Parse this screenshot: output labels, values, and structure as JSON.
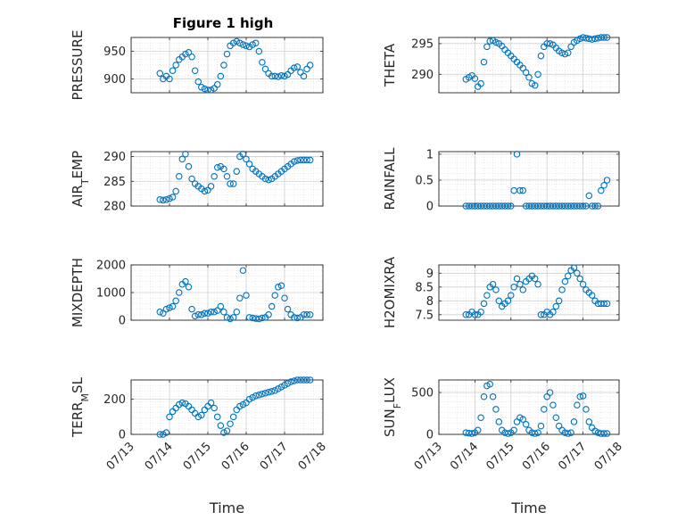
{
  "figure": {
    "title": "Figure 1 high"
  },
  "chart_data": [
    {
      "type": "scatter",
      "ylabel": "PRESSURE",
      "xlabel": "",
      "title": "Figure 1 high",
      "xlim": [
        "07/13",
        "07/18"
      ],
      "ylim": [
        875,
        975
      ],
      "yticks": [
        900,
        950
      ],
      "xticks": [
        "07/13",
        "07/14",
        "07/15",
        "07/16",
        "07/17",
        "07/18"
      ],
      "show_xticklabels": false,
      "grid": true,
      "marker_color": "#0072BD",
      "x": [
        "07/13 18:00",
        "07/13 20:00",
        "07/13 22:00",
        "07/14 00:00",
        "07/14 02:00",
        "07/14 04:00",
        "07/14 06:00",
        "07/14 08:00",
        "07/14 10:00",
        "07/14 12:00",
        "07/14 14:00",
        "07/14 16:00",
        "07/14 18:00",
        "07/14 20:00",
        "07/14 22:00",
        "07/15 00:00",
        "07/15 02:00",
        "07/15 04:00",
        "07/15 06:00",
        "07/15 08:00",
        "07/15 10:00",
        "07/15 12:00",
        "07/15 14:00",
        "07/15 16:00",
        "07/15 18:00",
        "07/15 20:00",
        "07/15 22:00",
        "07/16 00:00",
        "07/16 02:00",
        "07/16 04:00",
        "07/16 06:00",
        "07/16 08:00",
        "07/16 10:00",
        "07/16 12:00",
        "07/16 14:00",
        "07/16 16:00",
        "07/16 18:00",
        "07/16 20:00",
        "07/16 22:00",
        "07/17 00:00",
        "07/17 02:00",
        "07/17 04:00",
        "07/17 06:00",
        "07/17 08:00",
        "07/17 10:00",
        "07/17 12:00",
        "07/17 14:00",
        "07/17 16:00"
      ],
      "y": [
        910,
        900,
        905,
        900,
        915,
        925,
        935,
        940,
        945,
        948,
        940,
        915,
        895,
        885,
        882,
        880,
        880,
        883,
        890,
        905,
        925,
        945,
        960,
        965,
        968,
        965,
        962,
        960,
        958,
        962,
        965,
        950,
        930,
        918,
        910,
        905,
        905,
        904,
        906,
        905,
        908,
        915,
        920,
        922,
        912,
        905,
        918,
        925
      ]
    },
    {
      "type": "scatter",
      "ylabel": "THETA",
      "xlabel": "",
      "title": "",
      "xlim": [
        "07/13",
        "07/18"
      ],
      "ylim": [
        287,
        296
      ],
      "yticks": [
        290,
        295
      ],
      "xticks": [
        "07/13",
        "07/14",
        "07/15",
        "07/16",
        "07/17",
        "07/18"
      ],
      "show_xticklabels": false,
      "grid": true,
      "marker_color": "#0072BD",
      "x": [
        "07/13 18:00",
        "07/13 20:00",
        "07/13 22:00",
        "07/14 00:00",
        "07/14 02:00",
        "07/14 04:00",
        "07/14 06:00",
        "07/14 08:00",
        "07/14 10:00",
        "07/14 12:00",
        "07/14 14:00",
        "07/14 16:00",
        "07/14 18:00",
        "07/14 20:00",
        "07/14 22:00",
        "07/15 00:00",
        "07/15 02:00",
        "07/15 04:00",
        "07/15 06:00",
        "07/15 08:00",
        "07/15 10:00",
        "07/15 12:00",
        "07/15 14:00",
        "07/15 16:00",
        "07/15 18:00",
        "07/15 20:00",
        "07/15 22:00",
        "07/16 00:00",
        "07/16 02:00",
        "07/16 04:00",
        "07/16 06:00",
        "07/16 08:00",
        "07/16 10:00",
        "07/16 12:00",
        "07/16 14:00",
        "07/16 16:00",
        "07/16 18:00",
        "07/16 20:00",
        "07/16 22:00",
        "07/17 00:00",
        "07/17 02:00",
        "07/17 04:00",
        "07/17 06:00",
        "07/17 08:00",
        "07/17 10:00",
        "07/17 12:00",
        "07/17 14:00",
        "07/17 16:00"
      ],
      "y": [
        289.2,
        289.5,
        289.8,
        289.3,
        288.0,
        288.5,
        292.0,
        294.5,
        295.4,
        295.5,
        295.2,
        295.0,
        294.6,
        294.0,
        293.5,
        293.0,
        292.5,
        292.0,
        291.5,
        291.0,
        290.3,
        289.5,
        288.5,
        288.2,
        290.0,
        293.0,
        294.5,
        295.0,
        295.0,
        294.8,
        294.3,
        293.8,
        293.5,
        293.3,
        293.5,
        294.5,
        295.2,
        295.5,
        295.8,
        296.0,
        295.9,
        295.8,
        295.7,
        295.8,
        295.9,
        296.0,
        296.0,
        296.0
      ]
    },
    {
      "type": "scatter",
      "ylabel": "AIR_TEMP",
      "ylabel_parts": [
        "AIR",
        "T",
        "EMP"
      ],
      "xlabel": "",
      "title": "",
      "xlim": [
        "07/13",
        "07/18"
      ],
      "ylim": [
        280,
        291
      ],
      "yticks": [
        280,
        285,
        290
      ],
      "xticks": [
        "07/13",
        "07/14",
        "07/15",
        "07/16",
        "07/17",
        "07/18"
      ],
      "show_xticklabels": false,
      "grid": true,
      "marker_color": "#0072BD",
      "x": [
        "07/13 18:00",
        "07/13 20:00",
        "07/13 22:00",
        "07/14 00:00",
        "07/14 02:00",
        "07/14 04:00",
        "07/14 06:00",
        "07/14 08:00",
        "07/14 10:00",
        "07/14 12:00",
        "07/14 14:00",
        "07/14 16:00",
        "07/14 18:00",
        "07/14 20:00",
        "07/14 22:00",
        "07/15 00:00",
        "07/15 02:00",
        "07/15 04:00",
        "07/15 06:00",
        "07/15 08:00",
        "07/15 10:00",
        "07/15 12:00",
        "07/15 14:00",
        "07/15 16:00",
        "07/15 18:00",
        "07/15 20:00",
        "07/15 22:00",
        "07/16 00:00",
        "07/16 02:00",
        "07/16 04:00",
        "07/16 06:00",
        "07/16 08:00",
        "07/16 10:00",
        "07/16 12:00",
        "07/16 14:00",
        "07/16 16:00",
        "07/16 18:00",
        "07/16 20:00",
        "07/16 22:00",
        "07/17 00:00",
        "07/17 02:00",
        "07/17 04:00",
        "07/17 06:00",
        "07/17 08:00",
        "07/17 10:00",
        "07/17 12:00",
        "07/17 14:00",
        "07/17 16:00"
      ],
      "y": [
        281.3,
        281.2,
        281.3,
        281.5,
        281.8,
        283.0,
        286.0,
        289.5,
        290.5,
        288.0,
        285.5,
        284.5,
        284.0,
        283.5,
        283.0,
        283.2,
        284.0,
        286.0,
        287.8,
        288.0,
        287.5,
        286.0,
        284.5,
        284.5,
        287.0,
        290.0,
        290.5,
        289.5,
        288.5,
        287.5,
        287.0,
        286.5,
        286.0,
        285.5,
        285.3,
        285.5,
        286.0,
        286.5,
        287.0,
        287.5,
        288.0,
        288.5,
        289.0,
        289.2,
        289.3,
        289.3,
        289.3,
        289.3
      ]
    },
    {
      "type": "scatter",
      "ylabel": "RAINFALL",
      "xlabel": "",
      "title": "",
      "xlim": [
        "07/13",
        "07/18"
      ],
      "ylim": [
        0,
        1.05
      ],
      "yticks": [
        0,
        0.5,
        1
      ],
      "xticks": [
        "07/13",
        "07/14",
        "07/15",
        "07/16",
        "07/17",
        "07/18"
      ],
      "show_xticklabels": false,
      "grid": true,
      "marker_color": "#0072BD",
      "x": [
        "07/13 18:00",
        "07/13 20:00",
        "07/13 22:00",
        "07/14 00:00",
        "07/14 02:00",
        "07/14 04:00",
        "07/14 06:00",
        "07/14 08:00",
        "07/14 10:00",
        "07/14 12:00",
        "07/14 14:00",
        "07/14 16:00",
        "07/14 18:00",
        "07/14 20:00",
        "07/14 22:00",
        "07/15 00:00",
        "07/15 02:00",
        "07/15 04:00",
        "07/15 06:00",
        "07/15 08:00",
        "07/15 10:00",
        "07/15 12:00",
        "07/15 14:00",
        "07/15 16:00",
        "07/15 18:00",
        "07/15 20:00",
        "07/15 22:00",
        "07/16 00:00",
        "07/16 02:00",
        "07/16 04:00",
        "07/16 06:00",
        "07/16 08:00",
        "07/16 10:00",
        "07/16 12:00",
        "07/16 14:00",
        "07/16 16:00",
        "07/16 18:00",
        "07/16 20:00",
        "07/16 22:00",
        "07/17 00:00",
        "07/17 02:00",
        "07/17 04:00",
        "07/17 06:00",
        "07/17 08:00",
        "07/17 10:00",
        "07/17 12:00",
        "07/17 14:00",
        "07/17 16:00"
      ],
      "y": [
        0,
        0,
        0,
        0,
        0,
        0,
        0,
        0,
        0,
        0,
        0,
        0,
        0,
        0,
        0,
        0,
        0.3,
        1.0,
        0.3,
        0.3,
        0,
        0,
        0,
        0,
        0,
        0,
        0,
        0,
        0,
        0,
        0,
        0,
        0,
        0,
        0,
        0,
        0,
        0,
        0,
        0,
        0,
        0.2,
        0,
        0,
        0,
        0.3,
        0.4,
        0.5
      ]
    },
    {
      "type": "scatter",
      "ylabel": "MIXDEPTH",
      "xlabel": "",
      "title": "",
      "xlim": [
        "07/13",
        "07/18"
      ],
      "ylim": [
        0,
        2000
      ],
      "yticks": [
        0,
        1000,
        2000
      ],
      "xticks": [
        "07/13",
        "07/14",
        "07/15",
        "07/16",
        "07/17",
        "07/18"
      ],
      "show_xticklabels": false,
      "grid": true,
      "marker_color": "#0072BD",
      "x": [
        "07/13 18:00",
        "07/13 20:00",
        "07/13 22:00",
        "07/14 00:00",
        "07/14 02:00",
        "07/14 04:00",
        "07/14 06:00",
        "07/14 08:00",
        "07/14 10:00",
        "07/14 12:00",
        "07/14 14:00",
        "07/14 16:00",
        "07/14 18:00",
        "07/14 20:00",
        "07/14 22:00",
        "07/15 00:00",
        "07/15 02:00",
        "07/15 04:00",
        "07/15 06:00",
        "07/15 08:00",
        "07/15 10:00",
        "07/15 12:00",
        "07/15 14:00",
        "07/15 16:00",
        "07/15 18:00",
        "07/15 20:00",
        "07/15 22:00",
        "07/16 00:00",
        "07/16 02:00",
        "07/16 04:00",
        "07/16 06:00",
        "07/16 08:00",
        "07/16 10:00",
        "07/16 12:00",
        "07/16 14:00",
        "07/16 16:00",
        "07/16 18:00",
        "07/16 20:00",
        "07/16 22:00",
        "07/17 00:00",
        "07/17 02:00",
        "07/17 04:00",
        "07/17 06:00",
        "07/17 08:00",
        "07/17 10:00",
        "07/17 12:00",
        "07/17 14:00",
        "07/17 16:00"
      ],
      "y": [
        300,
        250,
        400,
        450,
        500,
        700,
        1000,
        1300,
        1400,
        1200,
        400,
        150,
        200,
        200,
        250,
        250,
        300,
        300,
        350,
        500,
        300,
        100,
        50,
        100,
        300,
        800,
        1800,
        900,
        100,
        80,
        60,
        50,
        80,
        100,
        200,
        500,
        900,
        1200,
        1250,
        800,
        400,
        200,
        100,
        80,
        100,
        200,
        200,
        200
      ]
    },
    {
      "type": "scatter",
      "ylabel": "H2OMIXRA",
      "xlabel": "",
      "title": "",
      "xlim": [
        "07/13",
        "07/18"
      ],
      "ylim": [
        7.3,
        9.3
      ],
      "yticks": [
        7.5,
        8,
        8.5,
        9
      ],
      "xticks": [
        "07/13",
        "07/14",
        "07/15",
        "07/16",
        "07/17",
        "07/18"
      ],
      "show_xticklabels": false,
      "grid": true,
      "marker_color": "#0072BD",
      "x": [
        "07/13 18:00",
        "07/13 20:00",
        "07/13 22:00",
        "07/14 00:00",
        "07/14 02:00",
        "07/14 04:00",
        "07/14 06:00",
        "07/14 08:00",
        "07/14 10:00",
        "07/14 12:00",
        "07/14 14:00",
        "07/14 16:00",
        "07/14 18:00",
        "07/14 20:00",
        "07/14 22:00",
        "07/15 00:00",
        "07/15 02:00",
        "07/15 04:00",
        "07/15 06:00",
        "07/15 08:00",
        "07/15 10:00",
        "07/15 12:00",
        "07/15 14:00",
        "07/15 16:00",
        "07/15 18:00",
        "07/15 20:00",
        "07/15 22:00",
        "07/16 00:00",
        "07/16 02:00",
        "07/16 04:00",
        "07/16 06:00",
        "07/16 08:00",
        "07/16 10:00",
        "07/16 12:00",
        "07/16 14:00",
        "07/16 16:00",
        "07/16 18:00",
        "07/16 20:00",
        "07/16 22:00",
        "07/17 00:00",
        "07/17 02:00",
        "07/17 04:00",
        "07/17 06:00",
        "07/17 08:00",
        "07/17 10:00",
        "07/17 12:00",
        "07/17 14:00",
        "07/17 16:00"
      ],
      "y": [
        7.5,
        7.5,
        7.6,
        7.5,
        7.5,
        7.6,
        7.9,
        8.2,
        8.5,
        8.6,
        8.4,
        8.0,
        7.8,
        7.9,
        8.0,
        8.2,
        8.5,
        8.8,
        8.6,
        8.4,
        8.7,
        8.8,
        8.9,
        8.8,
        8.6,
        7.5,
        7.5,
        7.6,
        7.5,
        7.6,
        7.8,
        8.0,
        8.4,
        8.7,
        8.9,
        9.1,
        9.2,
        9.0,
        8.8,
        8.6,
        8.4,
        8.3,
        8.2,
        8.0,
        7.9,
        7.9,
        7.9,
        7.9
      ]
    },
    {
      "type": "scatter",
      "ylabel": "TERR_MSL",
      "ylabel_parts": [
        "TERR",
        "M",
        "SL"
      ],
      "xlabel": "Time",
      "title": "",
      "xlim": [
        "07/13",
        "07/18"
      ],
      "ylim": [
        0,
        310
      ],
      "yticks": [
        0,
        200
      ],
      "xticks": [
        "07/13",
        "07/14",
        "07/15",
        "07/16",
        "07/17",
        "07/18"
      ],
      "show_xticklabels": true,
      "grid": true,
      "marker_color": "#0072BD",
      "x": [
        "07/13 18:00",
        "07/13 20:00",
        "07/13 22:00",
        "07/14 00:00",
        "07/14 02:00",
        "07/14 04:00",
        "07/14 06:00",
        "07/14 08:00",
        "07/14 10:00",
        "07/14 12:00",
        "07/14 14:00",
        "07/14 16:00",
        "07/14 18:00",
        "07/14 20:00",
        "07/14 22:00",
        "07/15 00:00",
        "07/15 02:00",
        "07/15 04:00",
        "07/15 06:00",
        "07/15 08:00",
        "07/15 10:00",
        "07/15 12:00",
        "07/15 14:00",
        "07/15 16:00",
        "07/15 18:00",
        "07/15 20:00",
        "07/15 22:00",
        "07/16 00:00",
        "07/16 02:00",
        "07/16 04:00",
        "07/16 06:00",
        "07/16 08:00",
        "07/16 10:00",
        "07/16 12:00",
        "07/16 14:00",
        "07/16 16:00",
        "07/16 18:00",
        "07/16 20:00",
        "07/16 22:00",
        "07/17 00:00",
        "07/17 02:00",
        "07/17 04:00",
        "07/17 06:00",
        "07/17 08:00",
        "07/17 10:00",
        "07/17 12:00",
        "07/17 14:00",
        "07/17 16:00"
      ],
      "y": [
        0,
        0,
        10,
        100,
        130,
        150,
        170,
        180,
        175,
        160,
        140,
        120,
        100,
        110,
        140,
        160,
        180,
        150,
        100,
        50,
        10,
        20,
        60,
        100,
        140,
        160,
        170,
        180,
        200,
        210,
        220,
        225,
        230,
        235,
        240,
        245,
        250,
        260,
        270,
        280,
        290,
        300,
        305,
        310,
        310,
        310,
        310,
        310
      ]
    },
    {
      "type": "scatter",
      "ylabel": "SUN_FLUX",
      "ylabel_parts": [
        "SUN",
        "F",
        "LUX"
      ],
      "xlabel": "Time",
      "title": "",
      "xlim": [
        "07/13",
        "07/18"
      ],
      "ylim": [
        0,
        650
      ],
      "yticks": [
        0,
        500
      ],
      "xticks": [
        "07/13",
        "07/14",
        "07/15",
        "07/16",
        "07/17",
        "07/18"
      ],
      "show_xticklabels": true,
      "grid": true,
      "marker_color": "#0072BD",
      "x": [
        "07/13 18:00",
        "07/13 20:00",
        "07/13 22:00",
        "07/14 00:00",
        "07/14 02:00",
        "07/14 04:00",
        "07/14 06:00",
        "07/14 08:00",
        "07/14 10:00",
        "07/14 12:00",
        "07/14 14:00",
        "07/14 16:00",
        "07/14 18:00",
        "07/14 20:00",
        "07/14 22:00",
        "07/15 00:00",
        "07/15 02:00",
        "07/15 04:00",
        "07/15 06:00",
        "07/15 08:00",
        "07/15 10:00",
        "07/15 12:00",
        "07/15 14:00",
        "07/15 16:00",
        "07/15 18:00",
        "07/15 20:00",
        "07/15 22:00",
        "07/16 00:00",
        "07/16 02:00",
        "07/16 04:00",
        "07/16 06:00",
        "07/16 08:00",
        "07/16 10:00",
        "07/16 12:00",
        "07/16 14:00",
        "07/16 16:00",
        "07/16 18:00",
        "07/16 20:00",
        "07/16 22:00",
        "07/17 00:00",
        "07/17 02:00",
        "07/17 04:00",
        "07/17 06:00",
        "07/17 08:00",
        "07/17 10:00",
        "07/17 12:00",
        "07/17 14:00",
        "07/17 16:00"
      ],
      "y": [
        20,
        15,
        10,
        20,
        50,
        200,
        450,
        580,
        600,
        450,
        300,
        150,
        50,
        20,
        10,
        20,
        50,
        150,
        200,
        180,
        120,
        50,
        20,
        10,
        20,
        100,
        300,
        450,
        500,
        350,
        200,
        100,
        50,
        20,
        10,
        20,
        150,
        350,
        450,
        460,
        300,
        150,
        80,
        40,
        20,
        10,
        10,
        10
      ]
    }
  ]
}
